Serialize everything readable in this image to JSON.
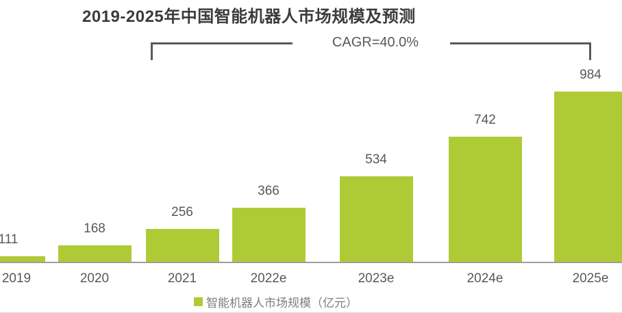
{
  "colors": {
    "bar-green": "#aecb35",
    "title-gray": "#3b3b3b",
    "label-gray": "#57585c",
    "bracket-gray": "#58595b",
    "axis-gray": "#9d9d9d",
    "legend-gray": "#7e7e7e",
    "hairline": "#d8d8d8",
    "bg": "#ffffff"
  },
  "chart_data": {
    "type": "bar",
    "title": "2019-2025年中国智能机器人市场规模及预测",
    "categories": [
      "2019",
      "2020",
      "2021",
      "2022e",
      "2023e",
      "2024e",
      "2025e"
    ],
    "values": [
      111,
      168,
      256,
      366,
      534,
      742,
      984
    ],
    "series_name": "智能机器人市场规模（亿元）",
    "annotation": "CAGR=40.0%",
    "unit": "亿元",
    "xlabel": "",
    "ylabel": "",
    "ylim": [
      78,
      1250
    ],
    "grid": false,
    "legend_position": "bottom",
    "bar_color": "#aecb35",
    "annotation_span_categories": [
      "2021",
      "2025e"
    ]
  }
}
